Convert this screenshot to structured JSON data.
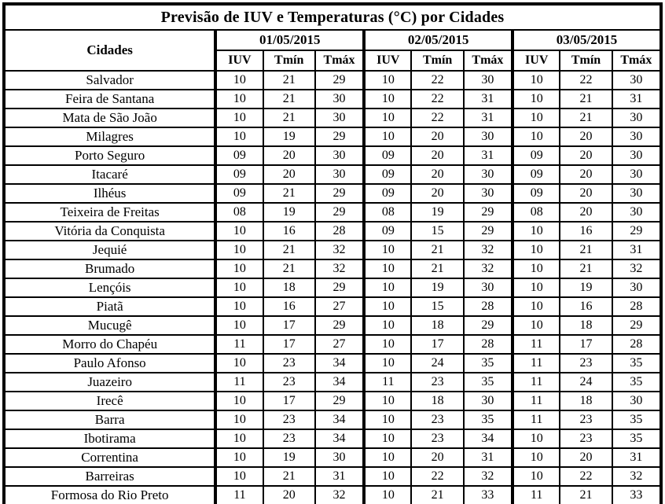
{
  "title": "Previsão de IUV e Temperaturas (°C) por Cidades",
  "colors": {
    "border": "#000000",
    "text": "#000000",
    "background": "#ffffff"
  },
  "table": {
    "city_header": "Cidades",
    "dates": [
      "01/05/2015",
      "02/05/2015",
      "03/05/2015"
    ],
    "sub_headers": [
      "IUV",
      "Tmín",
      "Tmáx"
    ],
    "rows": [
      {
        "city": "Salvador",
        "values": [
          "10",
          "21",
          "29",
          "10",
          "22",
          "30",
          "10",
          "22",
          "30"
        ]
      },
      {
        "city": "Feira de Santana",
        "values": [
          "10",
          "21",
          "30",
          "10",
          "22",
          "31",
          "10",
          "21",
          "31"
        ]
      },
      {
        "city": "Mata de São João",
        "values": [
          "10",
          "21",
          "30",
          "10",
          "22",
          "31",
          "10",
          "21",
          "30"
        ]
      },
      {
        "city": "Milagres",
        "values": [
          "10",
          "19",
          "29",
          "10",
          "20",
          "30",
          "10",
          "20",
          "30"
        ]
      },
      {
        "city": "Porto Seguro",
        "values": [
          "09",
          "20",
          "30",
          "09",
          "20",
          "31",
          "09",
          "20",
          "30"
        ]
      },
      {
        "city": "Itacaré",
        "values": [
          "09",
          "20",
          "30",
          "09",
          "20",
          "30",
          "09",
          "20",
          "30"
        ]
      },
      {
        "city": "Ilhéus",
        "values": [
          "09",
          "21",
          "29",
          "09",
          "20",
          "30",
          "09",
          "20",
          "30"
        ]
      },
      {
        "city": "Teixeira de Freitas",
        "values": [
          "08",
          "19",
          "29",
          "08",
          "19",
          "29",
          "08",
          "20",
          "30"
        ]
      },
      {
        "city": "Vitória da Conquista",
        "values": [
          "10",
          "16",
          "28",
          "09",
          "15",
          "29",
          "10",
          "16",
          "29"
        ]
      },
      {
        "city": "Jequié",
        "values": [
          "10",
          "21",
          "32",
          "10",
          "21",
          "32",
          "10",
          "21",
          "31"
        ]
      },
      {
        "city": "Brumado",
        "values": [
          "10",
          "21",
          "32",
          "10",
          "21",
          "32",
          "10",
          "21",
          "32"
        ]
      },
      {
        "city": "Lençóis",
        "values": [
          "10",
          "18",
          "29",
          "10",
          "19",
          "30",
          "10",
          "19",
          "30"
        ]
      },
      {
        "city": "Piatã",
        "values": [
          "10",
          "16",
          "27",
          "10",
          "15",
          "28",
          "10",
          "16",
          "28"
        ]
      },
      {
        "city": "Mucugê",
        "values": [
          "10",
          "17",
          "29",
          "10",
          "18",
          "29",
          "10",
          "18",
          "29"
        ]
      },
      {
        "city": "Morro do Chapéu",
        "values": [
          "11",
          "17",
          "27",
          "10",
          "17",
          "28",
          "11",
          "17",
          "28"
        ]
      },
      {
        "city": "Paulo Afonso",
        "values": [
          "10",
          "23",
          "34",
          "10",
          "24",
          "35",
          "11",
          "23",
          "35"
        ]
      },
      {
        "city": "Juazeiro",
        "values": [
          "11",
          "23",
          "34",
          "11",
          "23",
          "35",
          "11",
          "24",
          "35"
        ]
      },
      {
        "city": "Irecê",
        "values": [
          "10",
          "17",
          "29",
          "10",
          "18",
          "30",
          "11",
          "18",
          "30"
        ]
      },
      {
        "city": "Barra",
        "values": [
          "10",
          "23",
          "34",
          "10",
          "23",
          "35",
          "11",
          "23",
          "35"
        ]
      },
      {
        "city": "Ibotirama",
        "values": [
          "10",
          "23",
          "34",
          "10",
          "23",
          "34",
          "10",
          "23",
          "35"
        ]
      },
      {
        "city": "Correntina",
        "values": [
          "10",
          "19",
          "30",
          "10",
          "20",
          "31",
          "10",
          "20",
          "31"
        ]
      },
      {
        "city": "Barreiras",
        "values": [
          "10",
          "21",
          "31",
          "10",
          "22",
          "32",
          "10",
          "22",
          "32"
        ]
      },
      {
        "city": "Formosa do Rio Preto",
        "values": [
          "11",
          "20",
          "32",
          "10",
          "21",
          "33",
          "11",
          "21",
          "33"
        ]
      }
    ]
  }
}
